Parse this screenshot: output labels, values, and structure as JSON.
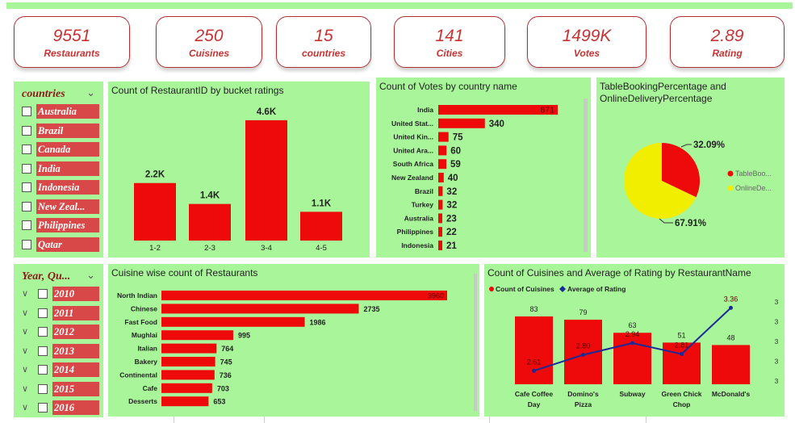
{
  "kpis": [
    {
      "value": "9551",
      "label": "Restaurants"
    },
    {
      "value": "250",
      "label": "Cuisines"
    },
    {
      "value": "15",
      "label": "countries"
    },
    {
      "value": "141",
      "label": "Cities"
    },
    {
      "value": "1499K",
      "label": "Votes"
    },
    {
      "value": "2.89",
      "label": "Rating"
    }
  ],
  "countries_slicer": {
    "title": "countries",
    "items": [
      "Australia",
      "Brazil",
      "Canada",
      "India",
      "Indonesia",
      "New Zeal...",
      "Philippines",
      "Qatar"
    ]
  },
  "year_slicer": {
    "title": "Year, Qu...",
    "items": [
      "2010",
      "2011",
      "2012",
      "2013",
      "2014",
      "2015",
      "2016"
    ]
  },
  "colors": {
    "bar": "#ee0a0a",
    "panel": "#a9f59a",
    "kpi_text": "#c83232",
    "line": "#1a2a9a",
    "yellow": "#f2ee00"
  },
  "chart_data": [
    {
      "type": "bar",
      "title": "Count of RestaurantID by bucket ratings",
      "categories": [
        "1-2",
        "2-3",
        "3-4",
        "4-5"
      ],
      "values": [
        2200,
        1400,
        4600,
        1100
      ],
      "data_labels": [
        "2.2K",
        "1.4K",
        "4.6K",
        "1.1K"
      ],
      "ylim": [
        0,
        4600
      ]
    },
    {
      "type": "bar",
      "orientation": "horizontal",
      "title": "Count of Votes by country name",
      "categories": [
        "India",
        "United Stat...",
        "United Kin...",
        "United Ara...",
        "South Africa",
        "New Zealand",
        "Brazil",
        "Turkey",
        "Australia",
        "Philippines",
        "Indonesia"
      ],
      "values": [
        871,
        340,
        75,
        60,
        59,
        40,
        32,
        32,
        23,
        22,
        21
      ],
      "data_labels": [
        "871",
        "340",
        "75",
        "60",
        "59",
        "40",
        "32",
        "32",
        "23",
        "22",
        "21"
      ]
    },
    {
      "type": "pie",
      "title": "TableBookingPercentage and OnlineDeliveryPercentage",
      "slices": [
        {
          "name": "TableBoo...",
          "value": 32.09,
          "label": "32.09%",
          "color": "#ee0a0a"
        },
        {
          "name": "OnlineDe...",
          "value": 67.91,
          "label": "67.91%",
          "color": "#f2ee00"
        }
      ],
      "legend": "right"
    },
    {
      "type": "bar",
      "orientation": "horizontal",
      "title": "Cuisine wise count of Restaurants",
      "categories": [
        "North Indian",
        "Chinese",
        "Fast Food",
        "Mughlai",
        "Italian",
        "Bakery",
        "Continental",
        "Cafe",
        "Desserts"
      ],
      "values": [
        3960,
        2735,
        1986,
        995,
        764,
        745,
        736,
        703,
        653
      ],
      "data_labels": [
        "3960",
        "2735",
        "1986",
        "995",
        "764",
        "745",
        "736",
        "703",
        "653"
      ]
    },
    {
      "type": "bar",
      "title": "Count of Cuisines and Average of Rating by RestaurantName",
      "categories": [
        "Cafe Coffee Day",
        "Domino's Pizza",
        "Subway",
        "Green Chick Chop",
        "McDonald's"
      ],
      "series": [
        {
          "name": "Count of Cuisines",
          "type": "bar",
          "values": [
            83,
            79,
            63,
            51,
            48
          ],
          "data_labels": [
            "83",
            "79",
            "63",
            "51",
            "48"
          ]
        },
        {
          "name": "Average of Rating",
          "type": "line",
          "values": [
            2.61,
            2.8,
            2.94,
            2.81,
            3.36
          ],
          "data_labels": [
            "2.61",
            "2.80",
            "2.94",
            "2.81",
            "3.36"
          ]
        }
      ],
      "right_axis_ticks": [
        "3",
        "3",
        "3",
        "3",
        "3"
      ],
      "legend": "top-left"
    }
  ]
}
